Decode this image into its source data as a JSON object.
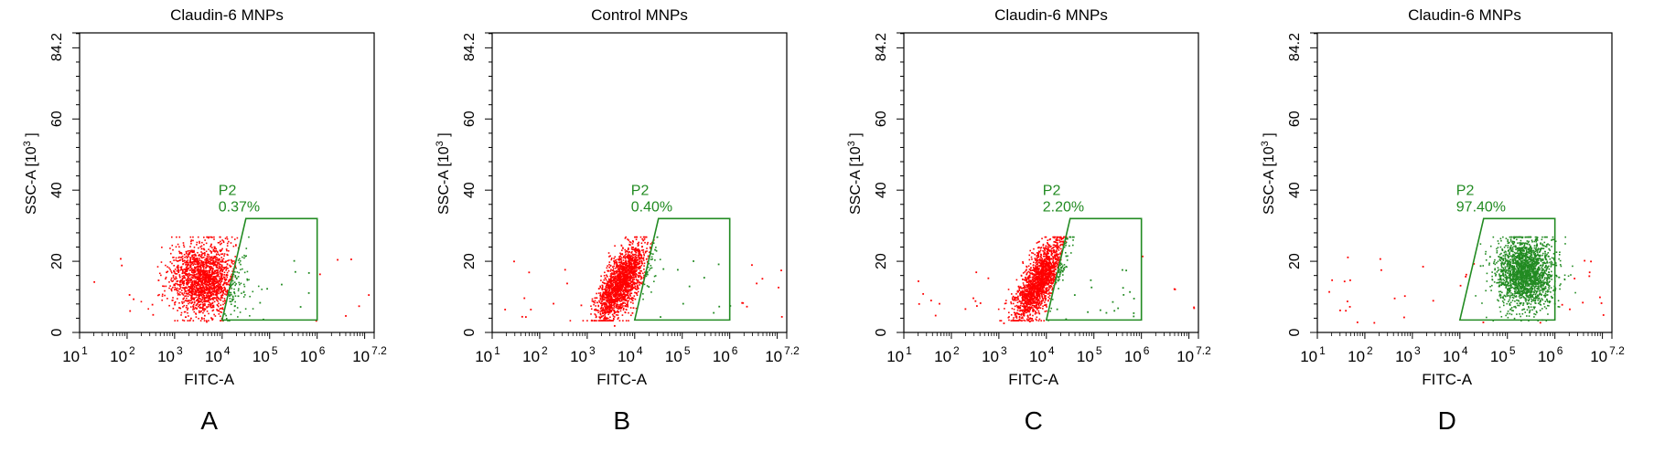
{
  "chart_data": [
    {
      "type": "scatter",
      "panel_label": "A",
      "title": "Claudin-6 MNPs",
      "xlabel": "FITC-A",
      "ylabel": "SSC-A [10",
      "ylabel_sup": "3",
      "ylabel_end": "]",
      "xscale": "log",
      "xlim": [
        1,
        7.2
      ],
      "ylim": [
        0,
        84.2
      ],
      "x_ticks": [
        {
          "base": "10",
          "exp": "1"
        },
        {
          "base": "10",
          "exp": "2"
        },
        {
          "base": "10",
          "exp": "3"
        },
        {
          "base": "10",
          "exp": "4"
        },
        {
          "base": "10",
          "exp": "5"
        },
        {
          "base": "10",
          "exp": "6"
        },
        {
          "base": "10",
          "exp": "7.2"
        }
      ],
      "y_ticks": [
        "0",
        "20",
        "40",
        "60",
        "84.2"
      ],
      "gate": {
        "name": "P2",
        "percent": "0.37%",
        "color": "#228b22",
        "vertices_log_x": [
          [
            4.0,
            3.5
          ],
          [
            6.0,
            3.5
          ],
          [
            6.0,
            32
          ],
          [
            4.5,
            32
          ]
        ]
      },
      "population": {
        "center_log_x": 3.6,
        "center_y": 15.0,
        "spread_x": 0.35,
        "spread_y": 5.0,
        "count": 1800,
        "shape": "blob"
      },
      "sparse_outliers": 35,
      "gated_percent": 0.37,
      "colors": {
        "ungated": "#ff0000",
        "gated": "#228b22"
      }
    },
    {
      "type": "scatter",
      "panel_label": "B",
      "title": "Control MNPs",
      "xlabel": "FITC-A",
      "ylabel": "SSC-A [10",
      "ylabel_sup": "3",
      "ylabel_end": "]",
      "xscale": "log",
      "xlim": [
        1,
        7.2
      ],
      "ylim": [
        0,
        84.2
      ],
      "x_ticks": [
        {
          "base": "10",
          "exp": "1"
        },
        {
          "base": "10",
          "exp": "2"
        },
        {
          "base": "10",
          "exp": "3"
        },
        {
          "base": "10",
          "exp": "4"
        },
        {
          "base": "10",
          "exp": "5"
        },
        {
          "base": "10",
          "exp": "6"
        },
        {
          "base": "10",
          "exp": "7.2"
        }
      ],
      "y_ticks": [
        "0",
        "20",
        "40",
        "60",
        "84.2"
      ],
      "gate": {
        "name": "P2",
        "percent": "0.40%",
        "color": "#228b22",
        "vertices_log_x": [
          [
            4.0,
            3.5
          ],
          [
            6.0,
            3.5
          ],
          [
            6.0,
            32
          ],
          [
            4.5,
            32
          ]
        ]
      },
      "population": {
        "center_log_x": 3.7,
        "center_y": 14.0,
        "spread_x": 0.35,
        "spread_y": 5.5,
        "count": 1800,
        "shape": "diagonal"
      },
      "sparse_outliers": 40,
      "gated_percent": 0.4,
      "colors": {
        "ungated": "#ff0000",
        "gated": "#228b22"
      }
    },
    {
      "type": "scatter",
      "panel_label": "C",
      "title": "Claudin-6 MNPs",
      "xlabel": "FITC-A",
      "ylabel": "SSC-A [10",
      "ylabel_sup": "3",
      "ylabel_end": "]",
      "xscale": "log",
      "xlim": [
        1,
        7.2
      ],
      "ylim": [
        0,
        84.2
      ],
      "x_ticks": [
        {
          "base": "10",
          "exp": "1"
        },
        {
          "base": "10",
          "exp": "2"
        },
        {
          "base": "10",
          "exp": "3"
        },
        {
          "base": "10",
          "exp": "4"
        },
        {
          "base": "10",
          "exp": "5"
        },
        {
          "base": "10",
          "exp": "6"
        },
        {
          "base": "10",
          "exp": "7.2"
        }
      ],
      "y_ticks": [
        "0",
        "20",
        "40",
        "60",
        "84.2"
      ],
      "gate": {
        "name": "P2",
        "percent": "2.20%",
        "color": "#228b22",
        "vertices_log_x": [
          [
            4.0,
            3.5
          ],
          [
            6.0,
            3.5
          ],
          [
            6.0,
            32
          ],
          [
            4.5,
            32
          ]
        ]
      },
      "population": {
        "center_log_x": 3.85,
        "center_y": 15.0,
        "spread_x": 0.32,
        "spread_y": 5.5,
        "count": 1800,
        "shape": "diagonal"
      },
      "sparse_outliers": 45,
      "gated_percent": 2.2,
      "colors": {
        "ungated": "#ff0000",
        "gated": "#228b22"
      }
    },
    {
      "type": "scatter",
      "panel_label": "D",
      "title": "Claudin-6 MNPs",
      "xlabel": "FITC-A",
      "ylabel": "SSC-A [10",
      "ylabel_sup": "3",
      "ylabel_end": "]",
      "xscale": "log",
      "xlim": [
        1,
        7.2
      ],
      "ylim": [
        0,
        84.2
      ],
      "x_ticks": [
        {
          "base": "10",
          "exp": "1"
        },
        {
          "base": "10",
          "exp": "2"
        },
        {
          "base": "10",
          "exp": "3"
        },
        {
          "base": "10",
          "exp": "4"
        },
        {
          "base": "10",
          "exp": "5"
        },
        {
          "base": "10",
          "exp": "6"
        },
        {
          "base": "10",
          "exp": "7.2"
        }
      ],
      "y_ticks": [
        "0",
        "20",
        "40",
        "60",
        "84.2"
      ],
      "gate": {
        "name": "P2",
        "percent": "97.40%",
        "color": "#228b22",
        "vertices_log_x": [
          [
            4.0,
            3.5
          ],
          [
            6.0,
            3.5
          ],
          [
            6.0,
            32
          ],
          [
            4.5,
            32
          ]
        ]
      },
      "population": {
        "center_log_x": 5.35,
        "center_y": 17.0,
        "spread_x": 0.3,
        "spread_y": 5.0,
        "count": 2000,
        "shape": "blob"
      },
      "sparse_outliers": 45,
      "gated_percent": 97.4,
      "colors": {
        "ungated": "#ff0000",
        "gated": "#228b22"
      }
    }
  ]
}
